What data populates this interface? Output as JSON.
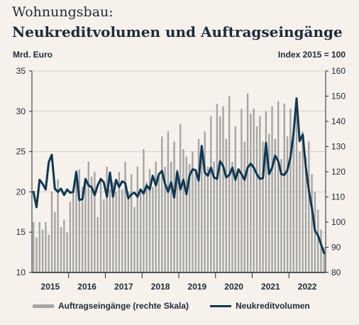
{
  "header": {
    "title": "Wohnungsbau:",
    "subtitle": "Neukreditvolumen und Auftragseingänge"
  },
  "colors": {
    "bars": "#a5a5a5",
    "line": "#0e3752",
    "background": "#f6f1ea"
  },
  "chart_data": {
    "type": "bar+line",
    "title": "Wohnungsbau: Neukreditvolumen und Auftragseingänge",
    "ylabel_left": "Mrd. Euro",
    "ylabel_right": "Index 2015 = 100",
    "ylim_left": [
      10,
      35
    ],
    "ylim_right": [
      80,
      160
    ],
    "yticks_left": [
      10,
      15,
      20,
      25,
      30,
      35
    ],
    "yticks_right": [
      80,
      90,
      100,
      110,
      120,
      130,
      140,
      150,
      160
    ],
    "x_start": "2015-01",
    "x_end": "2022-11",
    "x_ticks": [
      "2015",
      "2016",
      "2017",
      "2018",
      "2019",
      "2020",
      "2021",
      "2022"
    ],
    "legend_position": "bottom",
    "grid": "horizontal",
    "series": [
      {
        "name": "Auftragseingänge (rechte Skala)",
        "type": "bar",
        "axis": "right",
        "values": [
          100,
          94,
          100,
          97,
          100,
          95,
          112,
          104,
          117,
          98,
          101,
          96,
          108,
          112,
          117,
          121,
          114,
          116,
          124,
          118,
          120,
          102,
          117,
          109,
          122,
          113,
          116,
          112,
          120,
          113,
          124,
          112,
          119,
          106,
          122,
          112,
          129,
          116,
          121,
          114,
          124,
          118,
          134,
          122,
          136,
          124,
          132,
          121,
          139,
          129,
          126,
          123,
          128,
          121,
          133,
          126,
          136,
          122,
          142,
          124,
          147,
          142,
          146,
          133,
          150,
          124,
          138,
          121,
          145,
          132,
          151,
          143,
          145,
          138,
          142,
          132,
          144,
          135,
          146,
          133,
          148,
          125,
          147,
          134,
          145,
          137,
          143,
          128,
          136,
          126,
          132,
          119,
          112,
          105,
          97,
          90
        ]
      },
      {
        "name": "Neukreditvolumen",
        "type": "line",
        "axis": "left",
        "values": [
          20.0,
          18.1,
          21.5,
          21.0,
          20.3,
          23.7,
          24.6,
          20.4,
          20.0,
          20.4,
          19.6,
          20.3,
          19.9,
          20.0,
          22.5,
          19.0,
          19.1,
          21.6,
          20.8,
          20.6,
          19.6,
          20.8,
          21.6,
          21.2,
          19.4,
          22.4,
          19.4,
          21.5,
          20.6,
          21.3,
          21.1,
          19.2,
          19.7,
          19.9,
          19.4,
          20.3,
          19.8,
          20.8,
          20.3,
          22.0,
          20.8,
          22.2,
          22.6,
          21.0,
          20.0,
          21.2,
          19.3,
          22.5,
          20.3,
          21.5,
          19.7,
          22.0,
          22.8,
          22.7,
          21.4,
          25.7,
          22.4,
          22.0,
          23.0,
          21.8,
          21.6,
          23.8,
          23.2,
          21.8,
          22.1,
          23.0,
          21.5,
          22.8,
          22.2,
          21.5,
          23.0,
          23.5,
          23.0,
          22.2,
          21.6,
          21.7,
          26.1,
          22.2,
          23.0,
          24.5,
          23.8,
          22.2,
          22.1,
          22.7,
          24.3,
          27.2,
          31.6,
          26.3,
          27.1,
          23.1,
          20.2,
          18.0,
          15.2,
          14.6,
          13.5,
          12.4
        ]
      }
    ]
  },
  "legend": {
    "bars_label": "Auftragseingänge (rechte Skala)",
    "line_label": "Neukreditvolumen"
  }
}
